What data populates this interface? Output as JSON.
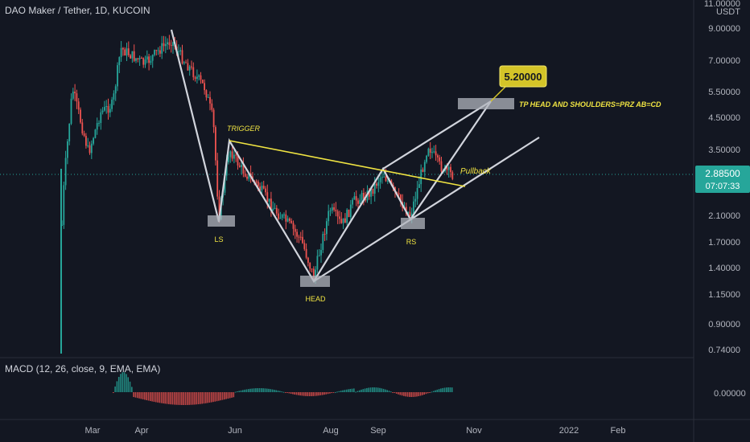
{
  "header": {
    "title": "DAO Maker / Tether, 1D, KUCOIN"
  },
  "indicator": {
    "label": "MACD (12, 26, close, 9, EMA, EMA)"
  },
  "price_axis": {
    "currency": "USDT",
    "ticks": [
      "11.00000",
      "9.00000",
      "7.00000",
      "5.50000",
      "4.50000",
      "3.50000",
      "2.10000",
      "1.70000",
      "1.40000",
      "1.15000",
      "0.90000",
      "0.74000"
    ],
    "macd_tick": "0.00000",
    "current_price": "2.88500",
    "countdown": "07:07:33"
  },
  "time_axis": {
    "ticks": [
      "Mar",
      "Apr",
      "Jun",
      "Aug",
      "Sep",
      "Nov",
      "2022",
      "Feb"
    ]
  },
  "annotations": {
    "target_box": "5.20000",
    "target_text": "TP HEAD AND SHOULDERS=PRZ AB=CD",
    "trigger": "TRIGGER",
    "pullback": "Pullback",
    "ls": "LS",
    "head": "HEAD",
    "rs": "RS"
  },
  "chart_data": {
    "type": "candlestick",
    "title": "DAO Maker / Tether, 1D, KUCOIN",
    "y_scale": "log",
    "ylim": [
      0.7,
      11
    ],
    "pattern": "head and shoulders",
    "zigzag": [
      {
        "date": "2021-04-15",
        "price": 9.0
      },
      {
        "date": "2021-05-23",
        "price": 2.0
      },
      {
        "date": "2021-05-28",
        "price": 3.7
      },
      {
        "date": "2021-07-20",
        "price": 1.2
      },
      {
        "date": "2021-09-01",
        "price": 3.0
      },
      {
        "date": "2021-09-20",
        "price": 2.0
      },
      {
        "date": "2021-10-20",
        "price": 5.2
      }
    ],
    "neckline": [
      {
        "date": "2021-05-28",
        "price": 3.7
      },
      {
        "date": "2021-10-08",
        "price": 2.55
      }
    ],
    "target": 5.2,
    "current_price": 2.885,
    "colors": {
      "up": "#26a69a",
      "down": "#ef5350",
      "pattern_lines": "#d1d4dc",
      "neckline": "#f0e442",
      "target_box": "#d4c428"
    }
  }
}
